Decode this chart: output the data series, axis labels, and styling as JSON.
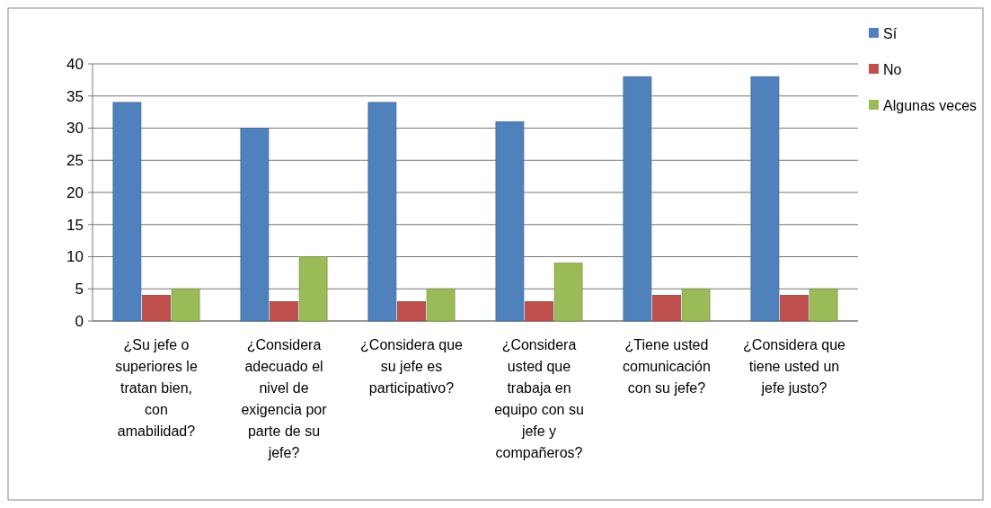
{
  "chart_data": {
    "type": "bar",
    "categories": [
      "¿Su jefe o superiores le tratan bien, con amabilidad?",
      "¿Considera adecuado el nivel de exigencia por parte de su jefe?",
      "¿Considera que su jefe es participativo?",
      "¿Considera usted que trabaja en equipo con su jefe y compañeros?",
      "¿Tiene usted comunicación con su jefe?",
      "¿Considera que tiene usted un jefe justo?"
    ],
    "series": [
      {
        "name": "Sí",
        "color": "#4f81bd",
        "values": [
          34,
          30,
          34,
          31,
          38,
          38
        ]
      },
      {
        "name": "No",
        "color": "#c0504d",
        "values": [
          4,
          3,
          3,
          3,
          4,
          4
        ]
      },
      {
        "name": "Algunas veces",
        "color": "#9bbb59",
        "values": [
          5,
          10,
          5,
          9,
          5,
          5
        ]
      }
    ],
    "ylim": [
      0,
      40
    ],
    "yticks": [
      0,
      5,
      10,
      15,
      20,
      25,
      30,
      35,
      40
    ],
    "grid": "y",
    "legend": "top right"
  }
}
